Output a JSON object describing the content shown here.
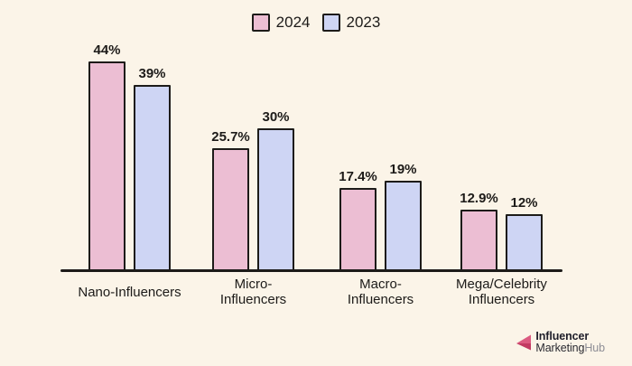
{
  "background_color": "#FBF4E8",
  "text_color": "#1D1B19",
  "outline_color": "#1D1B19",
  "legend": {
    "items": [
      {
        "label": "2024",
        "color": "#ECBED3"
      },
      {
        "label": "2023",
        "color": "#CED5F4"
      }
    ]
  },
  "chart_data": {
    "type": "bar",
    "title": "",
    "xlabel": "",
    "ylabel": "",
    "unit": "percent",
    "grid": false,
    "legend_position": "top-center",
    "value_labels_shown": true,
    "ylim": [
      0,
      48
    ],
    "categories": [
      "Nano-Influencers",
      "Micro-Influencers",
      "Macro-Influencers",
      "Mega/Celebrity Influencers"
    ],
    "categories_display": [
      [
        "Nano-Influencers"
      ],
      [
        "Micro-",
        "Influencers"
      ],
      [
        "Macro-",
        "Influencers"
      ],
      [
        "Mega/Celebrity",
        "Influencers"
      ]
    ],
    "series": [
      {
        "name": "2024",
        "color": "#ECBED3",
        "values": [
          44,
          25.7,
          17.4,
          12.9
        ],
        "value_labels": [
          "44%",
          "25.7%",
          "17.4%",
          "12.9%"
        ]
      },
      {
        "name": "2023",
        "color": "#CED5F4",
        "values": [
          39,
          30,
          19,
          12
        ],
        "value_labels": [
          "39%",
          "30%",
          "19%",
          "12%"
        ]
      }
    ]
  },
  "logo": {
    "line1": "Influencer",
    "line2_part1": "Marketing",
    "line2_part2": "Hub",
    "icon_color_light": "#DB5A80",
    "icon_color_dark": "#C23A62"
  }
}
